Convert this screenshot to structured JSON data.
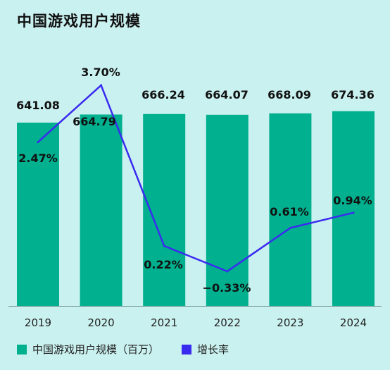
{
  "title": "中国游戏用户规模",
  "chart_data": {
    "type": "bar",
    "categories": [
      "2019",
      "2020",
      "2021",
      "2022",
      "2023",
      "2024"
    ],
    "series": [
      {
        "name": "中国游戏用户规模（百万）",
        "type": "bar",
        "values": [
          641.08,
          664.79,
          666.24,
          664.07,
          668.09,
          674.36
        ],
        "labels": [
          "641.08",
          "664.79",
          "666.24",
          "664.07",
          "668.09",
          "674.36"
        ],
        "color": "#00b08e"
      },
      {
        "name": "增长率",
        "type": "line",
        "values": [
          2.47,
          3.7,
          0.22,
          -0.33,
          0.61,
          0.94
        ],
        "labels": [
          "2.47%",
          "3.70%",
          "0.22%",
          "−0.33%",
          "0.61%",
          "0.94%"
        ],
        "color": "#3a2bf0"
      }
    ],
    "legend": "bottom-left",
    "grid": false
  }
}
